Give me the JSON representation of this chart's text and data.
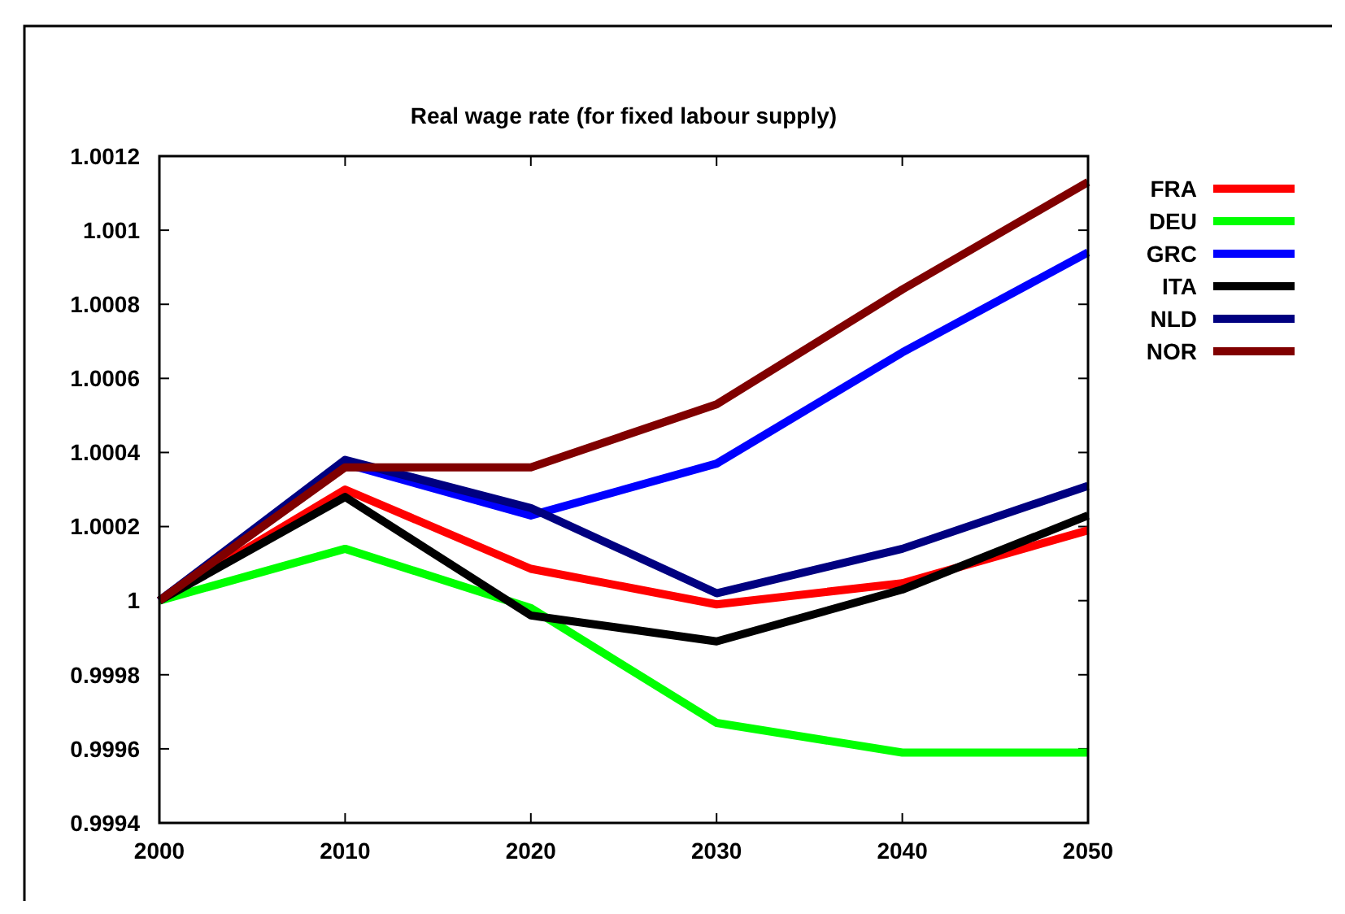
{
  "chart_data": {
    "type": "line",
    "title": "Real wage rate (for fixed labour supply)",
    "x": [
      2000,
      2010,
      2020,
      2030,
      2040,
      2050
    ],
    "xlim": [
      2000,
      2050
    ],
    "xticks": [
      2000,
      2010,
      2020,
      2030,
      2040,
      2050
    ],
    "ylim": [
      0.9994,
      1.0012
    ],
    "yticks": [
      0.9994,
      0.9996,
      0.9998,
      1,
      1.0002,
      1.0004,
      1.0006,
      1.0008,
      1.001,
      1.0012
    ],
    "grid": false,
    "legend": "top right",
    "line_style": "solid",
    "marker": "none",
    "series": [
      {
        "name": "FRA",
        "color": "#ff0000",
        "values": [
          1,
          1.0003,
          1.000086,
          0.99999,
          1.000047,
          1.00019
        ]
      },
      {
        "name": "DEU",
        "color": "#00ff00",
        "values": [
          1,
          1.00014,
          0.99998,
          0.99967,
          0.99959,
          0.99959
        ]
      },
      {
        "name": "GRC",
        "color": "#0000ff",
        "values": [
          1,
          1.00037,
          1.00023,
          1.00037,
          1.00067,
          1.00094
        ]
      },
      {
        "name": "ITA",
        "color": "#000000",
        "values": [
          1,
          1.00028,
          0.99996,
          0.99989,
          1.00003,
          1.00023
        ]
      },
      {
        "name": "NLD",
        "color": "#000080",
        "values": [
          1,
          1.00038,
          1.00025,
          1.00002,
          1.00014,
          1.00031
        ]
      },
      {
        "name": "NOR",
        "color": "#800000",
        "values": [
          1,
          1.00036,
          1.00036,
          1.00053,
          1.00084,
          1.00113
        ]
      }
    ]
  }
}
